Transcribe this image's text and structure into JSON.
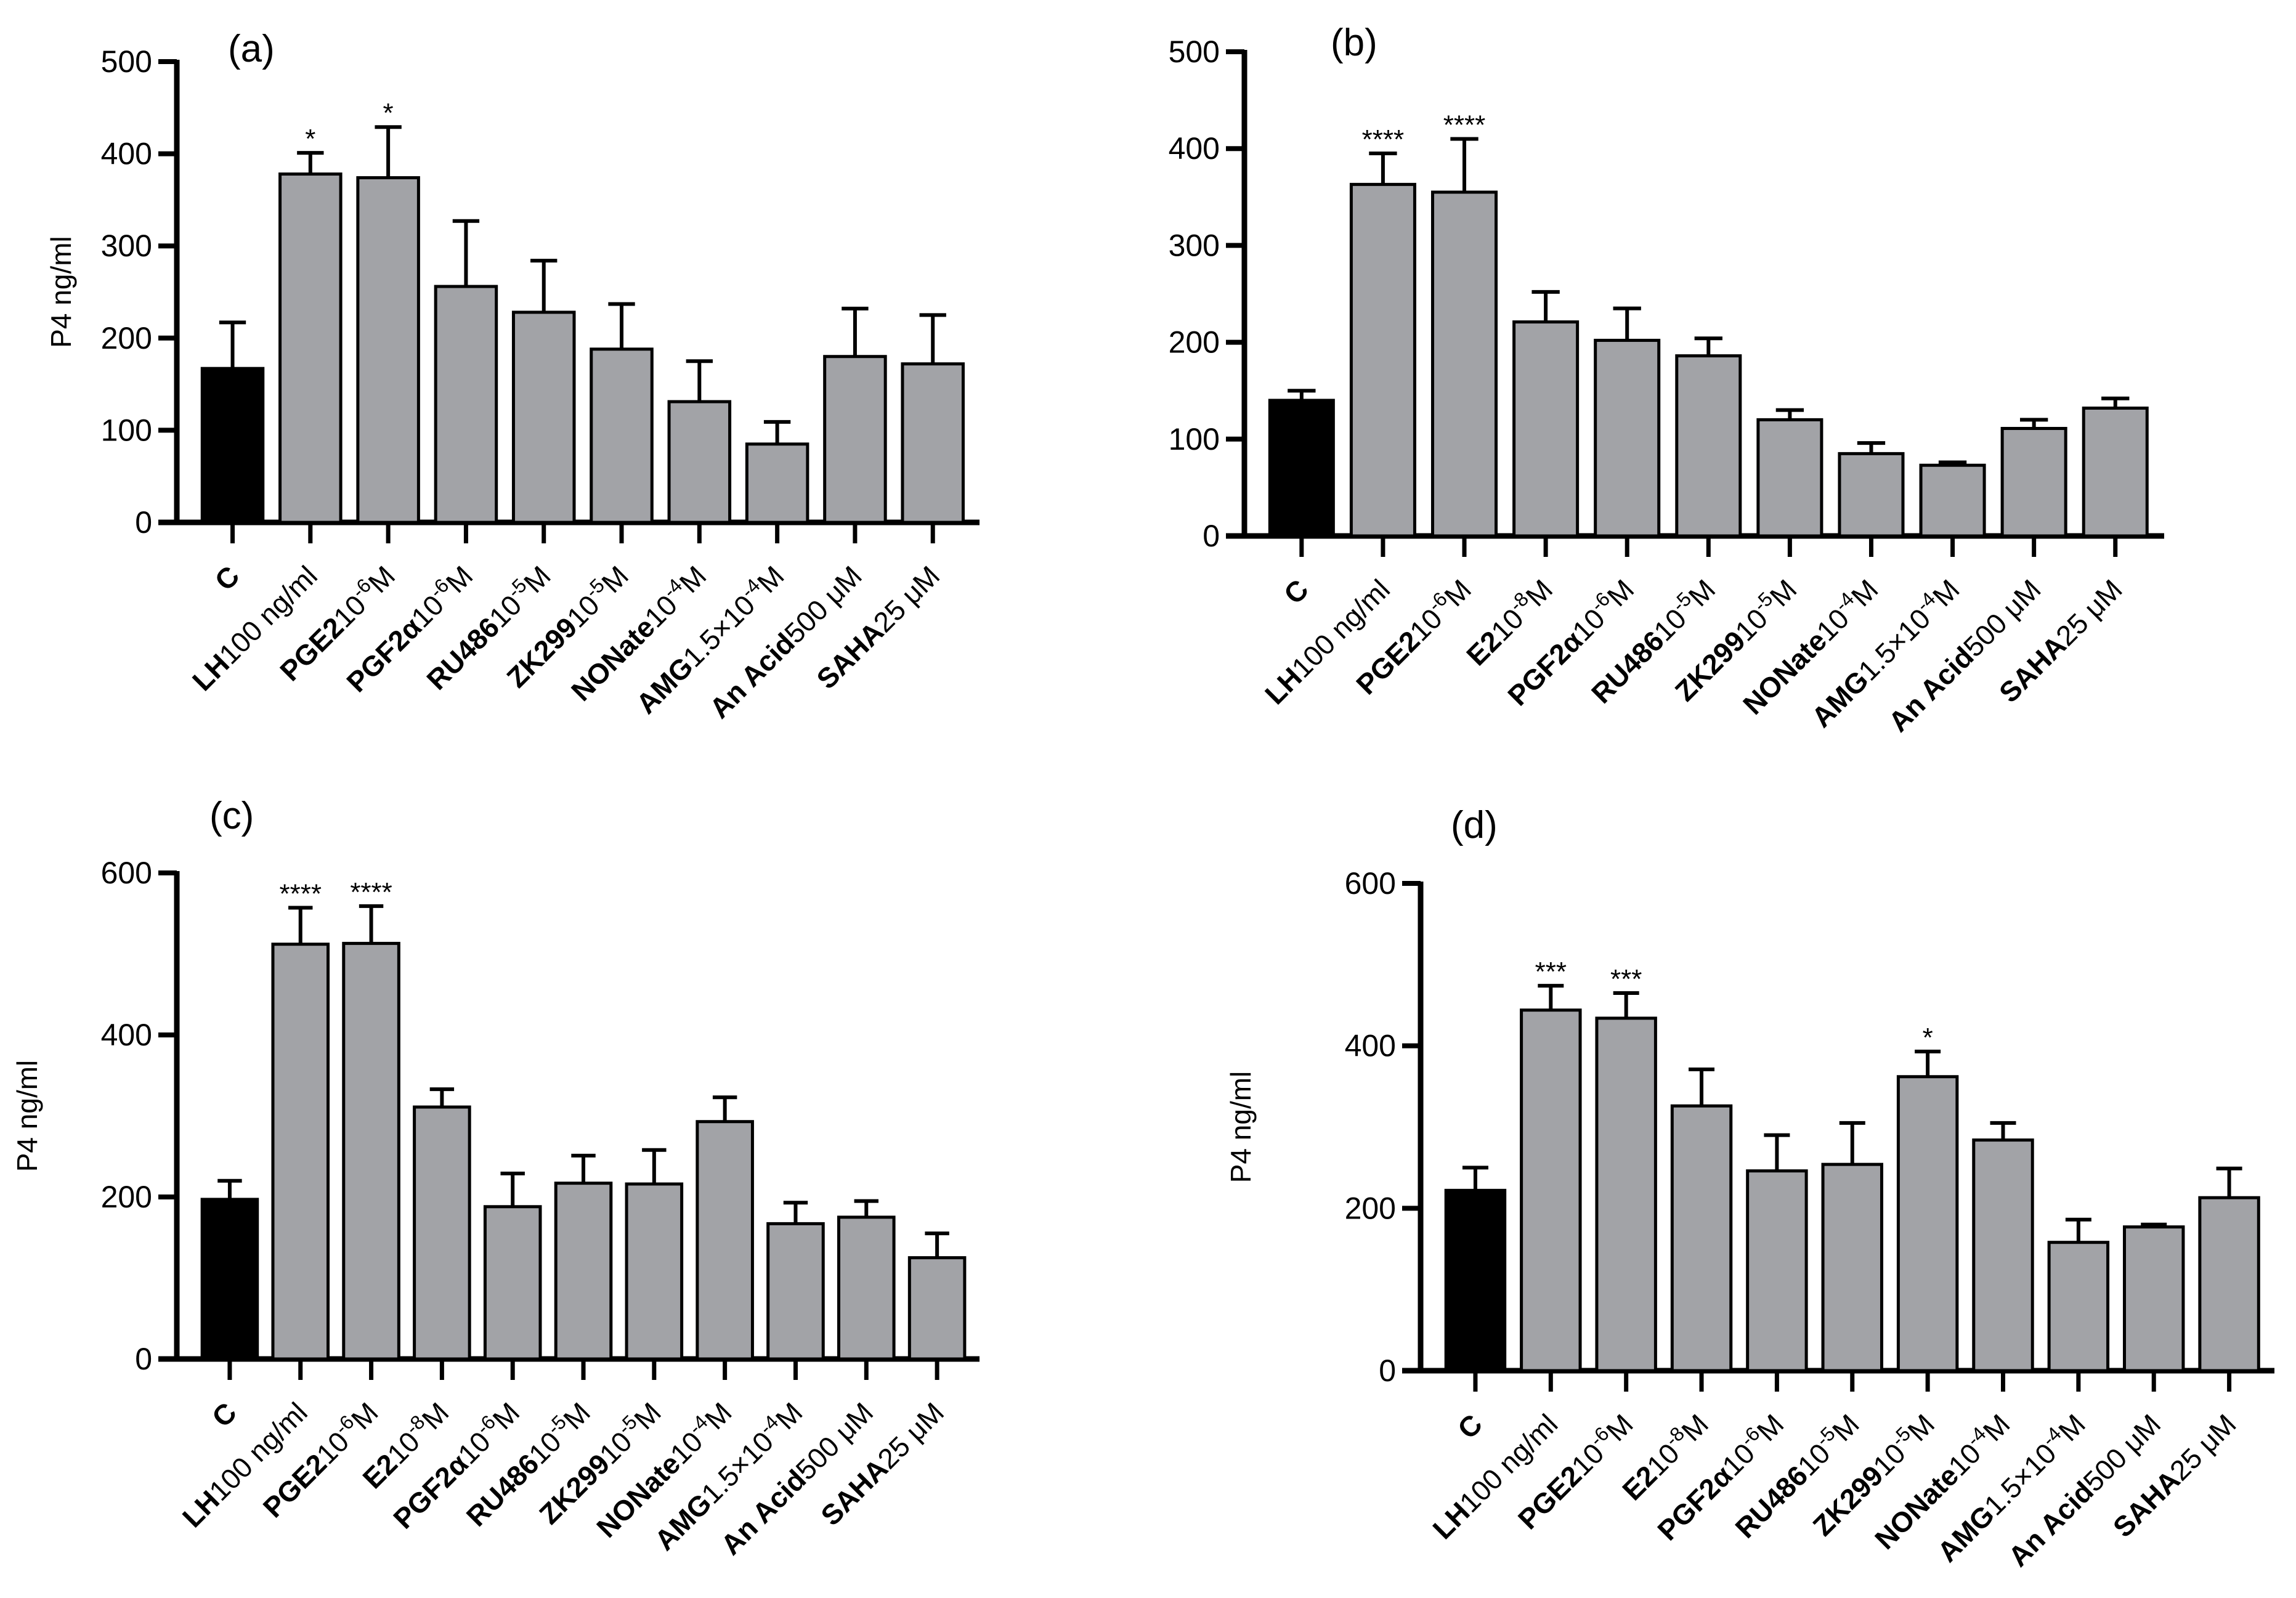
{
  "colors": {
    "control": "#000000",
    "treatment": "#a2a3a7",
    "outline": "#000000"
  },
  "chart_data": [
    {
      "type": "bar",
      "panel": "(a)",
      "ylabel": "P4 ng/ml",
      "ylim": [
        0,
        500
      ],
      "yticks": [
        0,
        100,
        200,
        300,
        400,
        500
      ],
      "grid": false,
      "categories": [
        {
          "bold": "C"
        },
        {
          "bold": "LH",
          "text": "100 ng/ml"
        },
        {
          "bold": "PGE2",
          "text": "10",
          "sup": "-6",
          "tail": "M"
        },
        {
          "bold": "PGF2α",
          "text": "10",
          "sup": "-6",
          "tail": "M"
        },
        {
          "bold": "RU486",
          "text": "10",
          "sup": "-5",
          "tail": "M"
        },
        {
          "bold": "ZK299",
          "text": "10",
          "sup": "-5",
          "tail": "M"
        },
        {
          "bold": "NONate",
          "text": "10",
          "sup": "-4",
          "tail": "M"
        },
        {
          "bold": "AMG",
          "text": "1.5×10",
          "sup": "-4",
          "tail": "M"
        },
        {
          "bold": "An Acid",
          "text": "500 μM"
        },
        {
          "bold": "SAHA",
          "text": "25 μM"
        }
      ],
      "values": [
        167,
        378,
        374,
        256,
        228,
        188,
        131,
        85,
        180,
        172
      ],
      "error_upper": [
        217,
        401,
        429,
        327,
        284,
        237,
        175,
        109,
        232,
        225
      ],
      "significance": [
        "",
        "*",
        "*",
        "",
        "",
        "",
        "",
        "",
        "",
        ""
      ]
    },
    {
      "type": "bar",
      "panel": "(b)",
      "ylabel": "",
      "ylim": [
        0,
        500
      ],
      "yticks": [
        0,
        100,
        200,
        300,
        400,
        500
      ],
      "grid": false,
      "categories": [
        {
          "bold": "C"
        },
        {
          "bold": "LH",
          "text": "100 ng/ml"
        },
        {
          "bold": "PGE2",
          "text": "10",
          "sup": "-6",
          "tail": "M"
        },
        {
          "bold": "E2",
          "text": "10",
          "sup": "-8",
          "tail": "M"
        },
        {
          "bold": "PGF2α",
          "text": "10",
          "sup": "-6",
          "tail": "M"
        },
        {
          "bold": "RU486",
          "text": "10",
          "sup": "-5",
          "tail": "M"
        },
        {
          "bold": "ZK299",
          "text": "10",
          "sup": "-5",
          "tail": "M"
        },
        {
          "bold": "NONate",
          "text": "10",
          "sup": "-4",
          "tail": "M"
        },
        {
          "bold": "AMG",
          "text": "1.5×10",
          "sup": "-4",
          "tail": "M"
        },
        {
          "bold": "An Acid",
          "text": "500 μM"
        },
        {
          "bold": "SAHA",
          "text": "25 μM"
        }
      ],
      "values": [
        140,
        363,
        355,
        221,
        202,
        186,
        120,
        85,
        73,
        111,
        132
      ],
      "error_upper": [
        150,
        395,
        410,
        252,
        235,
        204,
        130,
        96,
        76,
        120,
        142
      ],
      "significance": [
        "",
        "****",
        "****",
        "",
        "",
        "",
        "",
        "",
        "",
        "",
        ""
      ]
    },
    {
      "type": "bar",
      "panel": "(c)",
      "ylabel": "P4 ng/ml",
      "ylim": [
        0,
        600
      ],
      "yticks": [
        0,
        200,
        400,
        600
      ],
      "grid": false,
      "categories": [
        {
          "bold": "C"
        },
        {
          "bold": "LH",
          "text": "100 ng/ml"
        },
        {
          "bold": "PGE2",
          "text": "10",
          "sup": "-6",
          "tail": "M"
        },
        {
          "bold": "E2",
          "text": "10",
          "sup": "-8",
          "tail": "M"
        },
        {
          "bold": "PGF2α",
          "text": "10",
          "sup": "-6",
          "tail": "M"
        },
        {
          "bold": "RU486",
          "text": "10",
          "sup": "-5",
          "tail": "M"
        },
        {
          "bold": "ZK299",
          "text": "10",
          "sup": "-5",
          "tail": "M"
        },
        {
          "bold": "NONate",
          "text": "10",
          "sup": "-4",
          "tail": "M"
        },
        {
          "bold": "AMG",
          "text": "1.5×10",
          "sup": "-4",
          "tail": "M"
        },
        {
          "bold": "An Acid",
          "text": "500 μM"
        },
        {
          "bold": "SAHA",
          "text": "25 μM"
        }
      ],
      "values": [
        197,
        512,
        513,
        311,
        188,
        217,
        216,
        293,
        167,
        175,
        125
      ],
      "error_upper": [
        220,
        557,
        559,
        333,
        229,
        251,
        258,
        323,
        193,
        195,
        155
      ],
      "significance": [
        "",
        "****",
        "****",
        "",
        "",
        "",
        "",
        "",
        "",
        "",
        ""
      ]
    },
    {
      "type": "bar",
      "panel": "(d)",
      "ylabel": "P4 ng/ml",
      "ylim": [
        0,
        600
      ],
      "yticks": [
        0,
        200,
        400,
        600
      ],
      "grid": false,
      "categories": [
        {
          "bold": "C"
        },
        {
          "bold": "LH",
          "text": "100 ng/ml"
        },
        {
          "bold": "PGE2",
          "text": "10",
          "sup": "-6",
          "tail": "M"
        },
        {
          "bold": "E2",
          "text": "10",
          "sup": "-8",
          "tail": "M"
        },
        {
          "bold": "PGF2α",
          "text": "10",
          "sup": "-6",
          "tail": "M"
        },
        {
          "bold": "RU486",
          "text": "10",
          "sup": "-5",
          "tail": "M"
        },
        {
          "bold": "ZK299",
          "text": "10",
          "sup": "-5",
          "tail": "M"
        },
        {
          "bold": "NONate",
          "text": "10",
          "sup": "-4",
          "tail": "M"
        },
        {
          "bold": "AMG",
          "text": "1.5×10",
          "sup": "-4",
          "tail": "M"
        },
        {
          "bold": "An Acid",
          "text": "500 μM"
        },
        {
          "bold": "SAHA",
          "text": "25 μM"
        }
      ],
      "values": [
        222,
        444,
        434,
        326,
        246,
        254,
        362,
        284,
        158,
        177,
        213
      ],
      "error_upper": [
        250,
        474,
        465,
        371,
        290,
        305,
        393,
        305,
        186,
        180,
        249
      ],
      "significance": [
        "",
        "***",
        "***",
        "",
        "",
        "",
        "*",
        "",
        "",
        "",
        ""
      ]
    }
  ]
}
